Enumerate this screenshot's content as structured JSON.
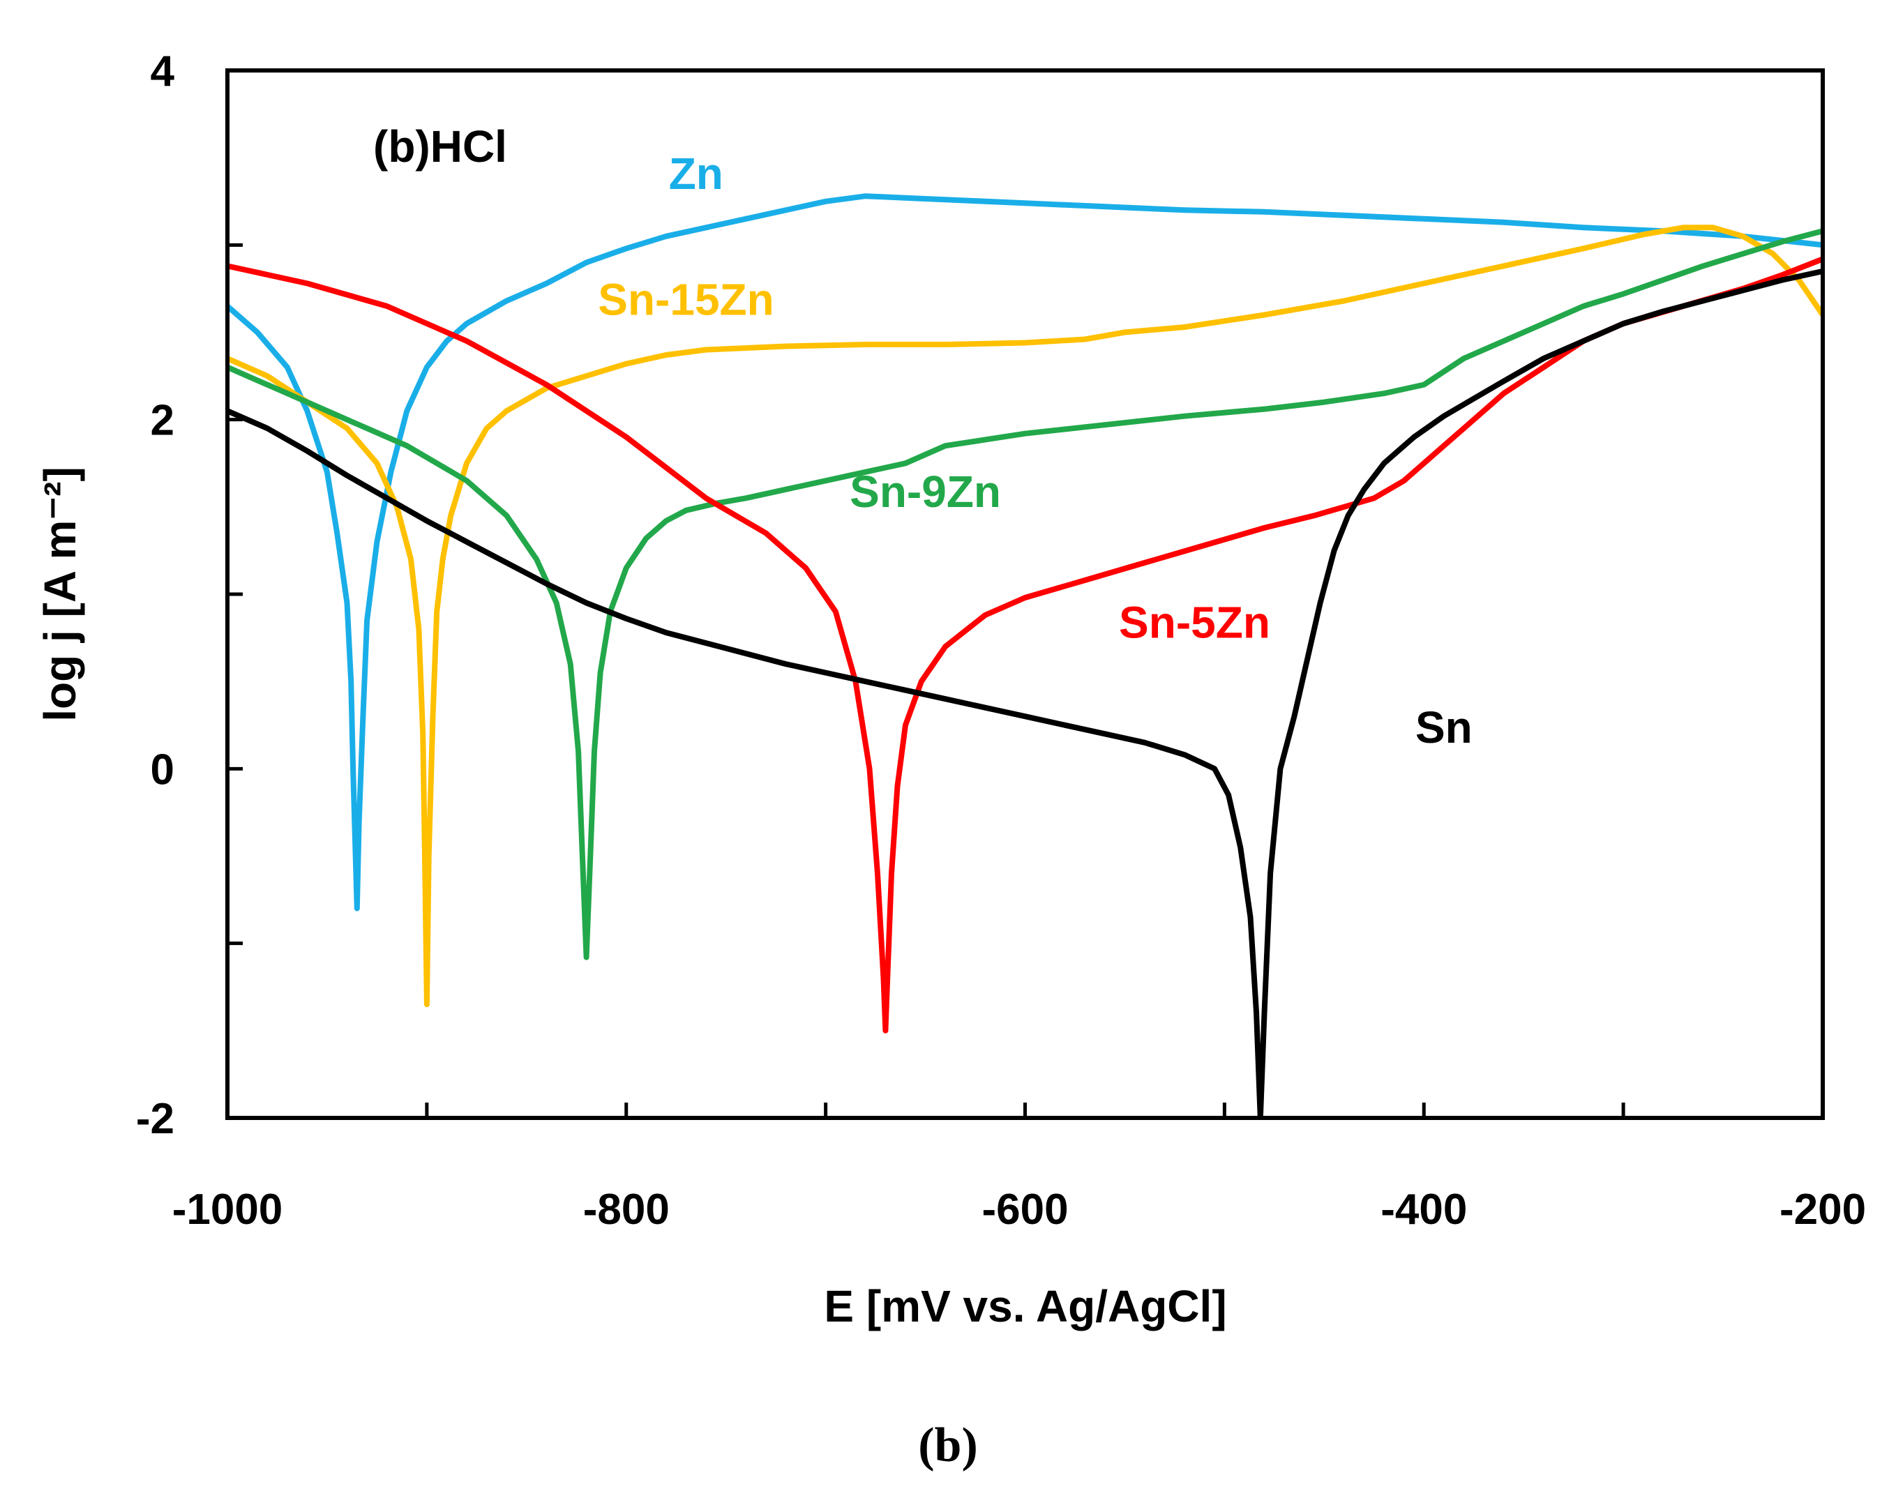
{
  "chart_data": {
    "type": "line",
    "title": "(b)HCl",
    "panel_caption": "(b)",
    "xlabel": "E [mV vs. Ag/AgCl]",
    "ylabel": "log j [A m⁻²]",
    "xlim": [
      -1000,
      -200
    ],
    "ylim": [
      -2,
      4
    ],
    "x_ticks": [
      -1000,
      -800,
      -600,
      -400,
      -200
    ],
    "x_tick_labels": [
      "-1000",
      "-800",
      "-600",
      "-400",
      "-200"
    ],
    "y_ticks": [
      -2,
      0,
      2,
      4
    ],
    "y_tick_labels": [
      "-2",
      "0",
      "2",
      "4"
    ],
    "y_minor_ticks": [
      -1,
      1,
      3
    ],
    "x_minor_ticks": [
      -900,
      -700,
      -500,
      -300
    ],
    "grid": false,
    "series": [
      {
        "name": "Zn",
        "label": "Zn",
        "color": "#1AAEE8",
        "points": [
          [
            -1000,
            2.65
          ],
          [
            -985,
            2.5
          ],
          [
            -970,
            2.3
          ],
          [
            -960,
            2.05
          ],
          [
            -950,
            1.7
          ],
          [
            -945,
            1.35
          ],
          [
            -940,
            0.95
          ],
          [
            -938,
            0.5
          ],
          [
            -937,
            0
          ],
          [
            -936,
            -0.4
          ],
          [
            -935,
            -0.8
          ],
          [
            -934,
            -0.3
          ],
          [
            -932,
            0.3
          ],
          [
            -930,
            0.85
          ],
          [
            -925,
            1.3
          ],
          [
            -918,
            1.7
          ],
          [
            -910,
            2.05
          ],
          [
            -900,
            2.3
          ],
          [
            -890,
            2.45
          ],
          [
            -880,
            2.55
          ],
          [
            -860,
            2.68
          ],
          [
            -840,
            2.78
          ],
          [
            -820,
            2.9
          ],
          [
            -800,
            2.98
          ],
          [
            -780,
            3.05
          ],
          [
            -760,
            3.1
          ],
          [
            -740,
            3.15
          ],
          [
            -720,
            3.2
          ],
          [
            -700,
            3.25
          ],
          [
            -680,
            3.28
          ],
          [
            -660,
            3.27
          ],
          [
            -640,
            3.26
          ],
          [
            -600,
            3.24
          ],
          [
            -560,
            3.22
          ],
          [
            -520,
            3.2
          ],
          [
            -480,
            3.19
          ],
          [
            -440,
            3.17
          ],
          [
            -400,
            3.15
          ],
          [
            -360,
            3.13
          ],
          [
            -320,
            3.1
          ],
          [
            -280,
            3.08
          ],
          [
            -240,
            3.05
          ],
          [
            -200,
            3.0
          ]
        ]
      },
      {
        "name": "Sn-15Zn",
        "label": "Sn-15Zn",
        "color": "#FFC000",
        "points": [
          [
            -1000,
            2.35
          ],
          [
            -980,
            2.25
          ],
          [
            -960,
            2.1
          ],
          [
            -940,
            1.95
          ],
          [
            -925,
            1.75
          ],
          [
            -915,
            1.5
          ],
          [
            -908,
            1.2
          ],
          [
            -904,
            0.8
          ],
          [
            -902,
            0.2
          ],
          [
            -901,
            -0.5
          ],
          [
            -900,
            -1.35
          ],
          [
            -899,
            -0.5
          ],
          [
            -897,
            0.3
          ],
          [
            -895,
            0.9
          ],
          [
            -892,
            1.2
          ],
          [
            -888,
            1.45
          ],
          [
            -880,
            1.75
          ],
          [
            -870,
            1.95
          ],
          [
            -860,
            2.05
          ],
          [
            -840,
            2.18
          ],
          [
            -820,
            2.25
          ],
          [
            -800,
            2.32
          ],
          [
            -780,
            2.37
          ],
          [
            -760,
            2.4
          ],
          [
            -720,
            2.42
          ],
          [
            -680,
            2.43
          ],
          [
            -640,
            2.43
          ],
          [
            -600,
            2.44
          ],
          [
            -570,
            2.46
          ],
          [
            -550,
            2.5
          ],
          [
            -520,
            2.53
          ],
          [
            -480,
            2.6
          ],
          [
            -440,
            2.68
          ],
          [
            -400,
            2.78
          ],
          [
            -360,
            2.88
          ],
          [
            -320,
            2.98
          ],
          [
            -290,
            3.06
          ],
          [
            -270,
            3.1
          ],
          [
            -255,
            3.1
          ],
          [
            -240,
            3.05
          ],
          [
            -225,
            2.95
          ],
          [
            -212,
            2.8
          ],
          [
            -200,
            2.6
          ]
        ]
      },
      {
        "name": "Sn-9Zn",
        "label": "Sn-9Zn",
        "color": "#22A84A",
        "points": [
          [
            -1000,
            2.3
          ],
          [
            -970,
            2.15
          ],
          [
            -940,
            2.0
          ],
          [
            -910,
            1.85
          ],
          [
            -880,
            1.65
          ],
          [
            -860,
            1.45
          ],
          [
            -845,
            1.2
          ],
          [
            -835,
            0.95
          ],
          [
            -828,
            0.6
          ],
          [
            -824,
            0.1
          ],
          [
            -822,
            -0.5
          ],
          [
            -820,
            -1.08
          ],
          [
            -818,
            -0.5
          ],
          [
            -816,
            0.1
          ],
          [
            -813,
            0.55
          ],
          [
            -808,
            0.9
          ],
          [
            -800,
            1.15
          ],
          [
            -790,
            1.32
          ],
          [
            -780,
            1.42
          ],
          [
            -770,
            1.48
          ],
          [
            -755,
            1.52
          ],
          [
            -740,
            1.55
          ],
          [
            -720,
            1.6
          ],
          [
            -700,
            1.65
          ],
          [
            -680,
            1.7
          ],
          [
            -660,
            1.75
          ],
          [
            -640,
            1.85
          ],
          [
            -600,
            1.92
          ],
          [
            -560,
            1.97
          ],
          [
            -520,
            2.02
          ],
          [
            -480,
            2.06
          ],
          [
            -450,
            2.1
          ],
          [
            -420,
            2.15
          ],
          [
            -400,
            2.2
          ],
          [
            -380,
            2.35
          ],
          [
            -360,
            2.45
          ],
          [
            -340,
            2.55
          ],
          [
            -320,
            2.65
          ],
          [
            -300,
            2.72
          ],
          [
            -280,
            2.8
          ],
          [
            -260,
            2.88
          ],
          [
            -240,
            2.95
          ],
          [
            -220,
            3.02
          ],
          [
            -200,
            3.08
          ]
        ]
      },
      {
        "name": "Sn-5Zn",
        "label": "Sn-5Zn",
        "color": "#FF0000",
        "points": [
          [
            -1000,
            2.88
          ],
          [
            -960,
            2.78
          ],
          [
            -920,
            2.65
          ],
          [
            -880,
            2.45
          ],
          [
            -840,
            2.2
          ],
          [
            -800,
            1.9
          ],
          [
            -760,
            1.55
          ],
          [
            -730,
            1.35
          ],
          [
            -710,
            1.15
          ],
          [
            -695,
            0.9
          ],
          [
            -685,
            0.5
          ],
          [
            -678,
            0.0
          ],
          [
            -674,
            -0.6
          ],
          [
            -671,
            -1.2
          ],
          [
            -670,
            -1.5
          ],
          [
            -669,
            -1.2
          ],
          [
            -667,
            -0.6
          ],
          [
            -664,
            -0.1
          ],
          [
            -660,
            0.25
          ],
          [
            -652,
            0.5
          ],
          [
            -640,
            0.7
          ],
          [
            -620,
            0.88
          ],
          [
            -600,
            0.98
          ],
          [
            -570,
            1.08
          ],
          [
            -540,
            1.18
          ],
          [
            -510,
            1.28
          ],
          [
            -480,
            1.38
          ],
          [
            -455,
            1.45
          ],
          [
            -440,
            1.5
          ],
          [
            -425,
            1.55
          ],
          [
            -410,
            1.65
          ],
          [
            -395,
            1.8
          ],
          [
            -380,
            1.95
          ],
          [
            -360,
            2.15
          ],
          [
            -340,
            2.3
          ],
          [
            -320,
            2.45
          ],
          [
            -300,
            2.55
          ],
          [
            -270,
            2.65
          ],
          [
            -240,
            2.75
          ],
          [
            -220,
            2.83
          ],
          [
            -200,
            2.92
          ]
        ]
      },
      {
        "name": "Sn",
        "label": "Sn",
        "color": "#000000",
        "points": [
          [
            -1000,
            2.05
          ],
          [
            -980,
            1.95
          ],
          [
            -960,
            1.82
          ],
          [
            -940,
            1.68
          ],
          [
            -920,
            1.55
          ],
          [
            -900,
            1.42
          ],
          [
            -880,
            1.3
          ],
          [
            -860,
            1.18
          ],
          [
            -840,
            1.06
          ],
          [
            -820,
            0.95
          ],
          [
            -800,
            0.86
          ],
          [
            -780,
            0.78
          ],
          [
            -760,
            0.72
          ],
          [
            -740,
            0.66
          ],
          [
            -720,
            0.6
          ],
          [
            -700,
            0.55
          ],
          [
            -680,
            0.5
          ],
          [
            -660,
            0.45
          ],
          [
            -640,
            0.4
          ],
          [
            -620,
            0.35
          ],
          [
            -600,
            0.3
          ],
          [
            -580,
            0.25
          ],
          [
            -560,
            0.2
          ],
          [
            -540,
            0.15
          ],
          [
            -520,
            0.08
          ],
          [
            -505,
            0.0
          ],
          [
            -498,
            -0.15
          ],
          [
            -492,
            -0.45
          ],
          [
            -487,
            -0.85
          ],
          [
            -484,
            -1.4
          ],
          [
            -482,
            -2.0
          ],
          [
            -480,
            -1.4
          ],
          [
            -477,
            -0.6
          ],
          [
            -472,
            0.0
          ],
          [
            -465,
            0.3
          ],
          [
            -458,
            0.65
          ],
          [
            -452,
            0.95
          ],
          [
            -445,
            1.25
          ],
          [
            -438,
            1.45
          ],
          [
            -430,
            1.6
          ],
          [
            -420,
            1.75
          ],
          [
            -405,
            1.9
          ],
          [
            -390,
            2.02
          ],
          [
            -375,
            2.12
          ],
          [
            -360,
            2.22
          ],
          [
            -340,
            2.35
          ],
          [
            -320,
            2.45
          ],
          [
            -300,
            2.55
          ],
          [
            -280,
            2.62
          ],
          [
            -260,
            2.68
          ],
          [
            -240,
            2.74
          ],
          [
            -220,
            2.8
          ],
          [
            -200,
            2.85
          ]
        ]
      }
    ]
  }
}
